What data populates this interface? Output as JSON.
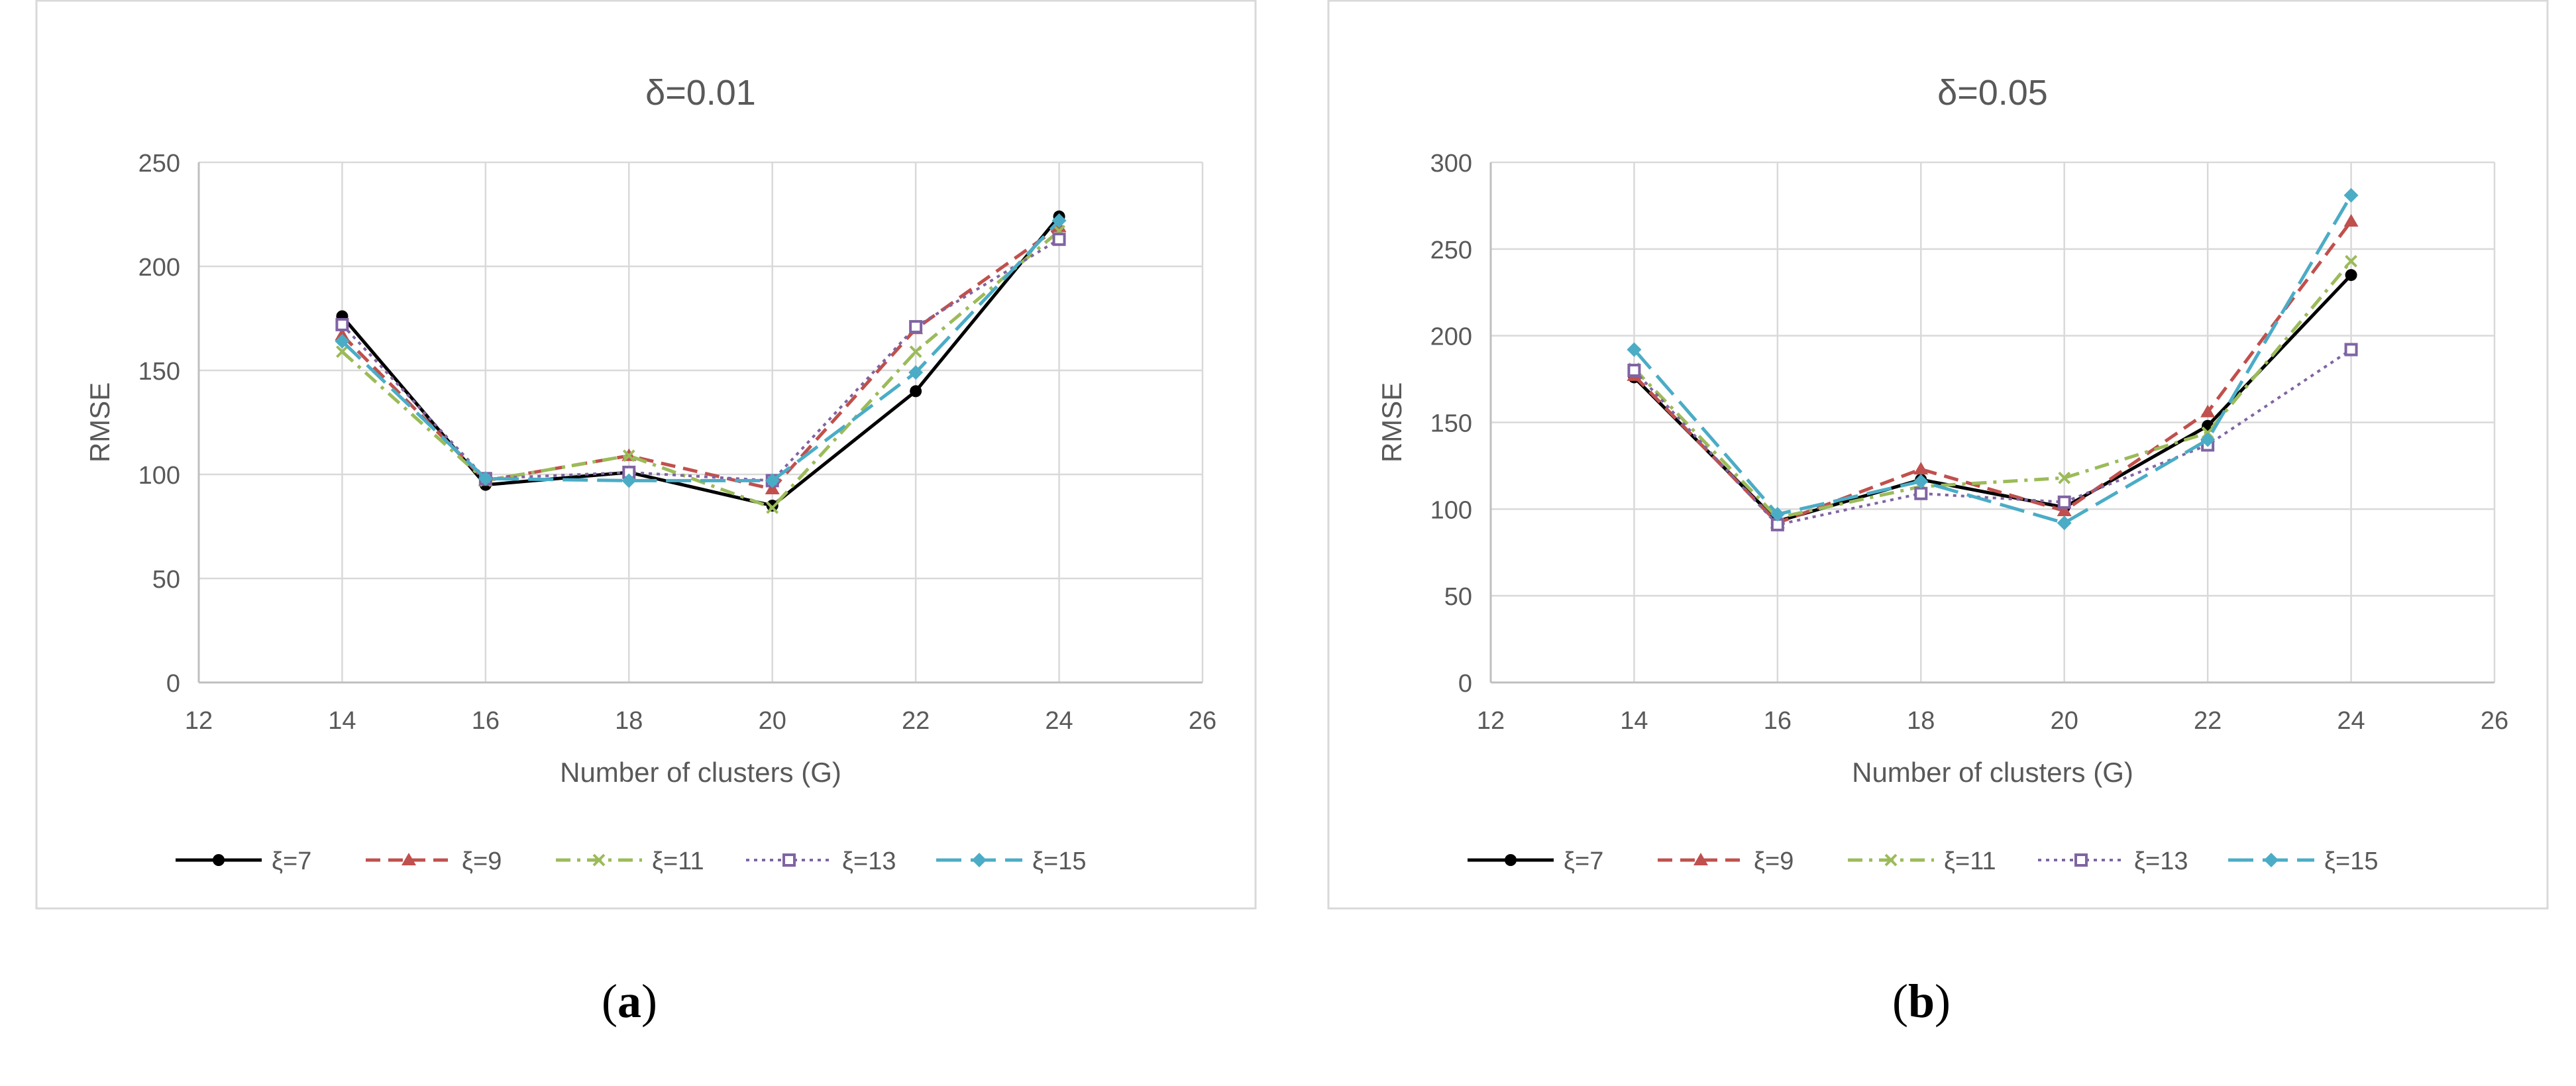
{
  "chart_data": [
    {
      "type": "line",
      "title": "δ=0.01",
      "xlabel": "Number of clusters (G)",
      "ylabel": "RMSE",
      "xlim": [
        12,
        26
      ],
      "ylim": [
        0,
        250
      ],
      "xticks": [
        "12",
        "14",
        "16",
        "18",
        "20",
        "22",
        "24",
        "26"
      ],
      "yticks": [
        "0",
        "50",
        "100",
        "150",
        "200",
        "250"
      ],
      "grid": true,
      "legend_position": "bottom",
      "panel_label": "a",
      "x": [
        14,
        16,
        18,
        20,
        22,
        24
      ],
      "series": [
        {
          "name": "ξ=7",
          "color": "#000000",
          "dash": "solid",
          "marker": "circle",
          "values": [
            176,
            95,
            101,
            85,
            140,
            224
          ]
        },
        {
          "name": "ξ=9",
          "color": "#c0504d",
          "dash": "dash",
          "marker": "triangle",
          "values": [
            167,
            97,
            109,
            93,
            170,
            219
          ]
        },
        {
          "name": "ξ=11",
          "color": "#9bbb59",
          "dash": "dashdot",
          "marker": "x",
          "values": [
            159,
            97,
            109,
            84,
            159,
            217
          ]
        },
        {
          "name": "ξ=13",
          "color": "#8064a2",
          "dash": "dot",
          "marker": "square",
          "values": [
            172,
            98,
            101,
            97,
            171,
            213
          ]
        },
        {
          "name": "ξ=15",
          "color": "#4bacc6",
          "dash": "longdash",
          "marker": "diamond",
          "values": [
            164,
            98,
            97,
            97,
            149,
            222
          ]
        }
      ]
    },
    {
      "type": "line",
      "title": "δ=0.05",
      "xlabel": "Number of clusters (G)",
      "ylabel": "RMSE",
      "xlim": [
        12,
        26
      ],
      "ylim": [
        0,
        300
      ],
      "xticks": [
        "12",
        "14",
        "16",
        "18",
        "20",
        "22",
        "24",
        "26"
      ],
      "yticks": [
        "0",
        "50",
        "100",
        "150",
        "200",
        "250",
        "300"
      ],
      "grid": true,
      "legend_position": "bottom",
      "panel_label": "b",
      "x": [
        14,
        16,
        18,
        20,
        22,
        24
      ],
      "series": [
        {
          "name": "ξ=7",
          "color": "#000000",
          "dash": "solid",
          "marker": "circle",
          "values": [
            176,
            93,
            117,
            101,
            148,
            235
          ]
        },
        {
          "name": "ξ=9",
          "color": "#c0504d",
          "dash": "dash",
          "marker": "triangle",
          "values": [
            177,
            92,
            123,
            99,
            156,
            266
          ]
        },
        {
          "name": "ξ=11",
          "color": "#9bbb59",
          "dash": "dashdot",
          "marker": "x",
          "values": [
            181,
            95,
            113,
            118,
            144,
            243
          ]
        },
        {
          "name": "ξ=13",
          "color": "#8064a2",
          "dash": "dot",
          "marker": "square",
          "values": [
            180,
            91,
            109,
            104,
            137,
            192
          ]
        },
        {
          "name": "ξ=15",
          "color": "#4bacc6",
          "dash": "longdash",
          "marker": "diamond",
          "values": [
            192,
            97,
            116,
            92,
            140,
            281
          ]
        }
      ]
    }
  ]
}
